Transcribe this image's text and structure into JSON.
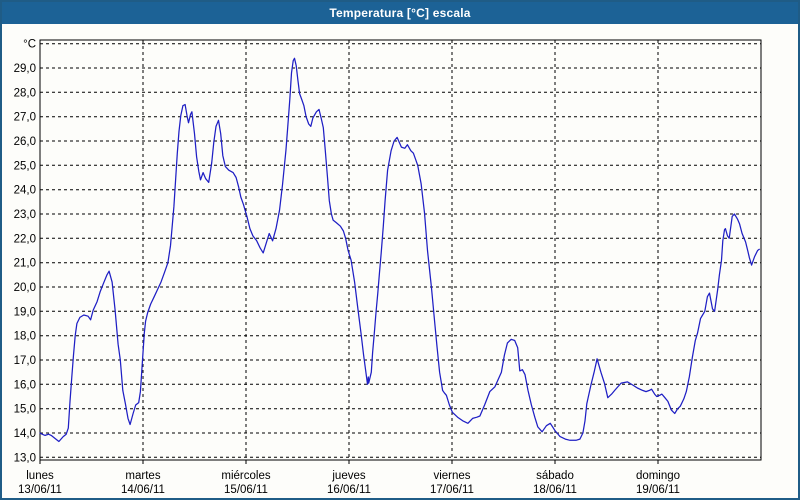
{
  "window": {
    "title": "Temperatura [°C] escala"
  },
  "colors": {
    "titlebar_bg": "#1c6296",
    "titlebar_fg": "#ffffff",
    "window_border": "#1f5c86",
    "plot_background": "#fdfdfa",
    "grid": "#000000",
    "frame": "#000000",
    "line": "#1f1fc4",
    "label": "#000000"
  },
  "chart_data": {
    "type": "line",
    "title": "Temperatura [°C] escala",
    "legend": "none",
    "grid": "dashed",
    "y_axis": {
      "unit_label": "°C",
      "min": 13.0,
      "max": 30.0,
      "step": 1.0,
      "tick_labels": [
        "29,0",
        "28,0",
        "27,0",
        "26,0",
        "25,0",
        "24,0",
        "23,0",
        "22,0",
        "21,0",
        "20,0",
        "19,0",
        "18,0",
        "17,0",
        "16,0",
        "15,0",
        "14,0",
        "13,0"
      ]
    },
    "x_axis": {
      "unit": "hours since lunes 13/06/11 00:00",
      "total_hours": 168,
      "day_width_hours": 24,
      "days": [
        {
          "weekday": "lunes",
          "date": "13/06/11"
        },
        {
          "weekday": "martes",
          "date": "14/06/11"
        },
        {
          "weekday": "miércoles",
          "date": "15/06/11"
        },
        {
          "weekday": "jueves",
          "date": "16/06/11"
        },
        {
          "weekday": "viernes",
          "date": "17/06/11"
        },
        {
          "weekday": "sábado",
          "date": "18/06/11"
        },
        {
          "weekday": "domingo",
          "date": "19/06/11"
        }
      ]
    },
    "series": [
      {
        "name": "Temperatura [°C]",
        "color": "#1f1fc4",
        "points": [
          [
            0,
            14.0
          ],
          [
            0.5,
            13.95
          ],
          [
            1.2,
            13.9
          ],
          [
            2.0,
            13.95
          ],
          [
            2.6,
            13.9
          ],
          [
            3.7,
            13.75
          ],
          [
            4.4,
            13.65
          ],
          [
            5.4,
            13.85
          ],
          [
            6.1,
            13.95
          ],
          [
            6.6,
            14.2
          ],
          [
            7.0,
            15.3
          ],
          [
            7.4,
            16.3
          ],
          [
            7.8,
            17.2
          ],
          [
            8.2,
            18.0
          ],
          [
            8.6,
            18.5
          ],
          [
            9.3,
            18.75
          ],
          [
            10.2,
            18.85
          ],
          [
            11.2,
            18.8
          ],
          [
            11.8,
            18.65
          ],
          [
            12.4,
            19.05
          ],
          [
            13.3,
            19.4
          ],
          [
            14.0,
            19.8
          ],
          [
            14.8,
            20.15
          ],
          [
            15.6,
            20.5
          ],
          [
            16.1,
            20.65
          ],
          [
            16.8,
            20.2
          ],
          [
            17.5,
            19.05
          ],
          [
            18.2,
            17.65
          ],
          [
            18.7,
            17.0
          ],
          [
            19.3,
            15.75
          ],
          [
            19.9,
            15.2
          ],
          [
            20.5,
            14.6
          ],
          [
            21.0,
            14.35
          ],
          [
            21.7,
            14.8
          ],
          [
            22.3,
            15.15
          ],
          [
            23.0,
            15.25
          ],
          [
            23.4,
            15.7
          ],
          [
            23.7,
            16.5
          ],
          [
            24.0,
            17.3
          ],
          [
            24.3,
            18.1
          ],
          [
            24.6,
            18.6
          ],
          [
            25.1,
            18.95
          ],
          [
            25.8,
            19.3
          ],
          [
            26.6,
            19.6
          ],
          [
            27.4,
            19.9
          ],
          [
            28.2,
            20.2
          ],
          [
            29.0,
            20.6
          ],
          [
            29.8,
            21.0
          ],
          [
            30.4,
            21.7
          ],
          [
            30.8,
            22.5
          ],
          [
            31.2,
            23.3
          ],
          [
            31.6,
            24.4
          ],
          [
            32.0,
            25.5
          ],
          [
            32.4,
            26.4
          ],
          [
            32.8,
            27.05
          ],
          [
            33.3,
            27.45
          ],
          [
            33.8,
            27.5
          ],
          [
            34.3,
            27.0
          ],
          [
            34.6,
            26.75
          ],
          [
            35.1,
            27.1
          ],
          [
            35.4,
            27.2
          ],
          [
            36.0,
            26.3
          ],
          [
            36.5,
            25.35
          ],
          [
            37.0,
            24.75
          ],
          [
            37.4,
            24.4
          ],
          [
            38.0,
            24.7
          ],
          [
            38.6,
            24.45
          ],
          [
            39.3,
            24.3
          ],
          [
            40.0,
            25.1
          ],
          [
            40.5,
            25.95
          ],
          [
            41.0,
            26.6
          ],
          [
            41.6,
            26.85
          ],
          [
            42.1,
            26.3
          ],
          [
            42.6,
            25.4
          ],
          [
            43.2,
            24.95
          ],
          [
            44.0,
            24.8
          ],
          [
            45.0,
            24.7
          ],
          [
            45.7,
            24.5
          ],
          [
            46.3,
            24.1
          ],
          [
            46.8,
            23.7
          ],
          [
            47.4,
            23.4
          ],
          [
            48.2,
            22.9
          ],
          [
            48.9,
            22.4
          ],
          [
            49.6,
            22.1
          ],
          [
            50.5,
            21.9
          ],
          [
            51.3,
            21.6
          ],
          [
            52.0,
            21.4
          ],
          [
            53.4,
            22.2
          ],
          [
            54.2,
            21.9
          ],
          [
            55.0,
            22.4
          ],
          [
            55.8,
            23.15
          ],
          [
            56.5,
            24.2
          ],
          [
            57.3,
            25.6
          ],
          [
            57.7,
            26.5
          ],
          [
            58.2,
            27.7
          ],
          [
            58.6,
            28.8
          ],
          [
            59.0,
            29.3
          ],
          [
            59.3,
            29.4
          ],
          [
            59.7,
            29.1
          ],
          [
            60.1,
            28.5
          ],
          [
            60.5,
            27.95
          ],
          [
            61.0,
            27.7
          ],
          [
            61.5,
            27.45
          ],
          [
            62.0,
            27.0
          ],
          [
            62.6,
            26.7
          ],
          [
            63.1,
            26.6
          ],
          [
            63.6,
            26.95
          ],
          [
            64.4,
            27.2
          ],
          [
            65.0,
            27.3
          ],
          [
            65.5,
            26.95
          ],
          [
            66.0,
            26.55
          ],
          [
            66.4,
            25.75
          ],
          [
            67.0,
            24.5
          ],
          [
            67.4,
            23.55
          ],
          [
            67.9,
            23.0
          ],
          [
            68.3,
            22.75
          ],
          [
            69.0,
            22.65
          ],
          [
            70.0,
            22.5
          ],
          [
            70.7,
            22.3
          ],
          [
            71.2,
            22.0
          ],
          [
            71.8,
            21.5
          ],
          [
            72.5,
            21.1
          ],
          [
            73.3,
            20.2
          ],
          [
            74.0,
            19.2
          ],
          [
            74.8,
            18.1
          ],
          [
            75.4,
            17.2
          ],
          [
            76.0,
            16.4
          ],
          [
            76.3,
            16.0
          ],
          [
            76.5,
            16.3
          ],
          [
            76.6,
            16.05
          ],
          [
            77.2,
            16.5
          ],
          [
            77.5,
            17.3
          ],
          [
            77.9,
            18.1
          ],
          [
            78.3,
            18.95
          ],
          [
            78.7,
            19.75
          ],
          [
            79.1,
            20.6
          ],
          [
            79.5,
            21.4
          ],
          [
            80.0,
            22.5
          ],
          [
            80.4,
            23.55
          ],
          [
            81.0,
            24.8
          ],
          [
            81.8,
            25.6
          ],
          [
            82.5,
            26.0
          ],
          [
            83.2,
            26.15
          ],
          [
            84.2,
            25.75
          ],
          [
            85.0,
            25.7
          ],
          [
            85.6,
            25.85
          ],
          [
            86.4,
            25.6
          ],
          [
            87.0,
            25.5
          ],
          [
            88.0,
            25.0
          ],
          [
            88.8,
            24.25
          ],
          [
            89.6,
            23.05
          ],
          [
            90.3,
            21.5
          ],
          [
            91.2,
            20.0
          ],
          [
            92.0,
            18.5
          ],
          [
            92.5,
            17.55
          ],
          [
            93.1,
            16.5
          ],
          [
            93.8,
            15.75
          ],
          [
            94.2,
            15.65
          ],
          [
            94.7,
            15.55
          ],
          [
            95.4,
            15.15
          ],
          [
            96.1,
            14.85
          ],
          [
            97.3,
            14.65
          ],
          [
            98.5,
            14.5
          ],
          [
            99.7,
            14.4
          ],
          [
            100.8,
            14.6
          ],
          [
            101.8,
            14.65
          ],
          [
            102.5,
            14.7
          ],
          [
            103.6,
            15.15
          ],
          [
            104.8,
            15.7
          ],
          [
            106.0,
            15.9
          ],
          [
            107.5,
            16.5
          ],
          [
            108.2,
            17.2
          ],
          [
            108.9,
            17.7
          ],
          [
            109.8,
            17.85
          ],
          [
            110.6,
            17.8
          ],
          [
            111.3,
            17.5
          ],
          [
            111.8,
            16.55
          ],
          [
            112.4,
            16.6
          ],
          [
            113.0,
            16.4
          ],
          [
            113.7,
            15.75
          ],
          [
            114.5,
            15.15
          ],
          [
            115.3,
            14.65
          ],
          [
            116.0,
            14.25
          ],
          [
            117.0,
            14.05
          ],
          [
            118.0,
            14.3
          ],
          [
            118.9,
            14.4
          ],
          [
            120.0,
            14.1
          ],
          [
            121.2,
            13.85
          ],
          [
            122.4,
            13.75
          ],
          [
            123.5,
            13.7
          ],
          [
            124.9,
            13.7
          ],
          [
            125.8,
            13.75
          ],
          [
            126.5,
            14.0
          ],
          [
            127.0,
            14.5
          ],
          [
            127.4,
            15.2
          ],
          [
            128.4,
            16.0
          ],
          [
            129.1,
            16.5
          ],
          [
            129.8,
            17.05
          ],
          [
            130.7,
            16.5
          ],
          [
            131.5,
            16.05
          ],
          [
            132.3,
            15.45
          ],
          [
            133.2,
            15.6
          ],
          [
            133.9,
            15.75
          ],
          [
            135.4,
            16.05
          ],
          [
            136.9,
            16.1
          ],
          [
            138.3,
            15.95
          ],
          [
            139.2,
            15.85
          ],
          [
            140.4,
            15.75
          ],
          [
            141.2,
            15.7
          ],
          [
            142.0,
            15.75
          ],
          [
            142.5,
            15.8
          ],
          [
            143.2,
            15.6
          ],
          [
            143.7,
            15.5
          ],
          [
            144.4,
            15.55
          ],
          [
            144.9,
            15.6
          ],
          [
            145.6,
            15.45
          ],
          [
            146.3,
            15.3
          ],
          [
            147.1,
            14.95
          ],
          [
            147.9,
            14.8
          ],
          [
            148.6,
            15.0
          ],
          [
            149.2,
            15.1
          ],
          [
            150.0,
            15.4
          ],
          [
            150.6,
            15.7
          ],
          [
            151.3,
            16.3
          ],
          [
            152.0,
            17.1
          ],
          [
            152.7,
            17.8
          ],
          [
            153.2,
            18.1
          ],
          [
            153.9,
            18.7
          ],
          [
            154.4,
            18.85
          ],
          [
            154.9,
            19.0
          ],
          [
            155.5,
            19.6
          ],
          [
            156.0,
            19.75
          ],
          [
            156.7,
            19.1
          ],
          [
            157.2,
            19.0
          ],
          [
            157.9,
            19.9
          ],
          [
            158.3,
            20.5
          ],
          [
            158.8,
            21.1
          ],
          [
            159.1,
            21.9
          ],
          [
            159.5,
            22.35
          ],
          [
            159.7,
            22.4
          ],
          [
            160.2,
            22.1
          ],
          [
            160.6,
            22.0
          ],
          [
            161.3,
            22.9
          ],
          [
            161.8,
            23.0
          ],
          [
            162.5,
            22.8
          ],
          [
            163.0,
            22.6
          ],
          [
            163.6,
            22.2
          ],
          [
            164.4,
            21.85
          ],
          [
            164.9,
            21.5
          ],
          [
            165.3,
            21.2
          ],
          [
            165.8,
            20.9
          ],
          [
            166.5,
            21.25
          ],
          [
            167.2,
            21.5
          ],
          [
            167.6,
            21.55
          ]
        ]
      }
    ]
  }
}
